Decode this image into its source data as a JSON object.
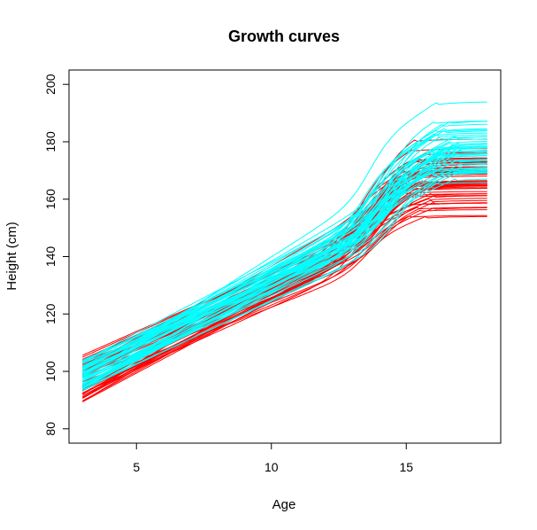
{
  "chart_data": {
    "type": "line",
    "title": "Growth curves",
    "xlabel": "Age",
    "ylabel": "Height (cm)",
    "xlim": [
      2.5,
      18.5
    ],
    "ylim": [
      75,
      205
    ],
    "x_ticks": [
      5,
      10,
      15
    ],
    "y_ticks": [
      80,
      100,
      120,
      140,
      160,
      180,
      200
    ],
    "grid": false,
    "age_range": [
      3,
      18
    ],
    "groups": [
      {
        "name": "red",
        "color": "#ff0000",
        "curve_count": 54,
        "height_at_age3_range": [
          89,
          106
        ],
        "adult_height_range": [
          154,
          181
        ],
        "adult_height_median": 165,
        "growth_spurt_peak_age": 13.5,
        "plateau_age": 15.5
      },
      {
        "name": "cyan",
        "color": "#00ffff",
        "curve_count": 54,
        "height_at_age3_range": [
          93,
          104
        ],
        "adult_height_range": [
          166,
          194
        ],
        "adult_height_median": 178,
        "growth_spurt_peak_age": 14.0,
        "plateau_age": 16.5
      }
    ]
  }
}
